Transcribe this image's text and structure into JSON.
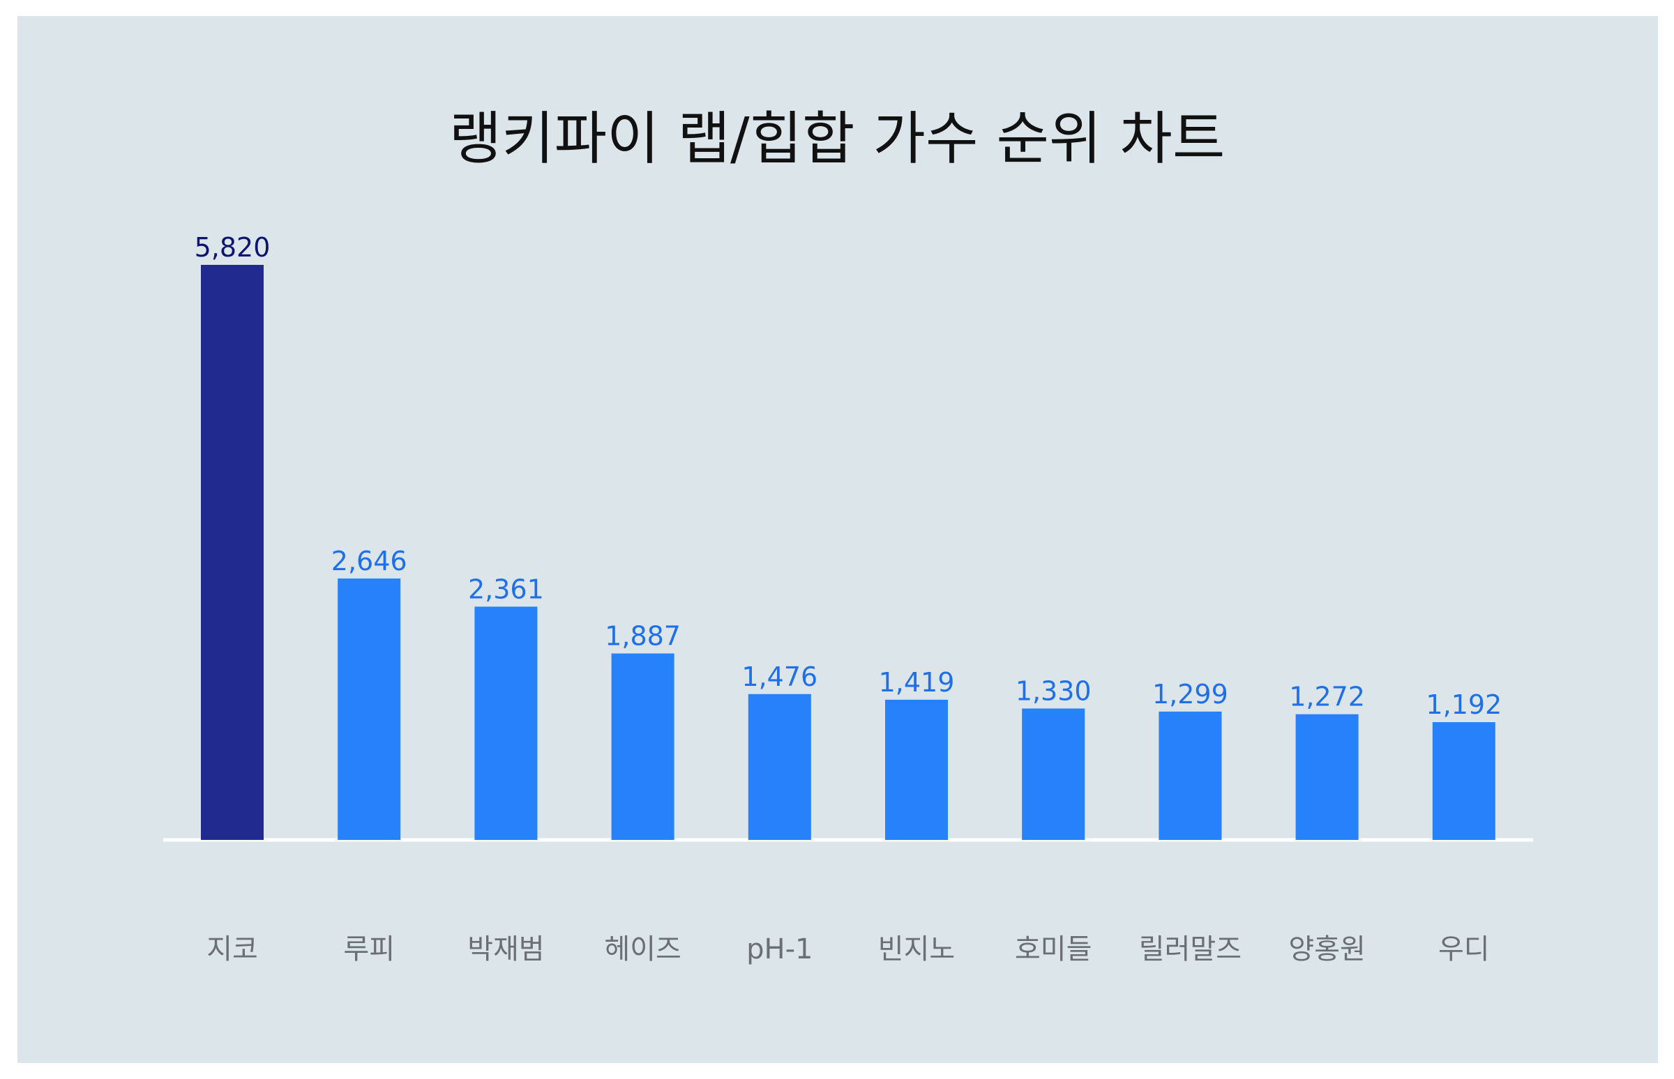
{
  "colors": {
    "background": "#dce6ea",
    "highlight_bar": "#212a8e",
    "bar": "#2681fb",
    "highlight_value_text": "#0e1470",
    "value_text": "#1f6fe8",
    "baseline": "#ffffff",
    "category_text": "#6b6f73"
  },
  "chart_data": {
    "type": "bar",
    "title": "랭키파이 랩/힙합 가수 순위 차트",
    "xlabel": "",
    "ylabel": "",
    "categories": [
      "지코",
      "루피",
      "박재범",
      "헤이즈",
      "pH-1",
      "빈지노",
      "호미들",
      "릴러말즈",
      "양홍원",
      "우디"
    ],
    "values": [
      5820,
      2646,
      2361,
      1887,
      1476,
      1419,
      1330,
      1299,
      1272,
      1192
    ],
    "value_labels": [
      "5,820",
      "2,646",
      "2,361",
      "1,887",
      "1,476",
      "1,419",
      "1,330",
      "1,299",
      "1,272",
      "1,192"
    ],
    "highlight_index": 0,
    "ylim": [
      0,
      5820
    ],
    "grid": false,
    "legend": "none"
  }
}
